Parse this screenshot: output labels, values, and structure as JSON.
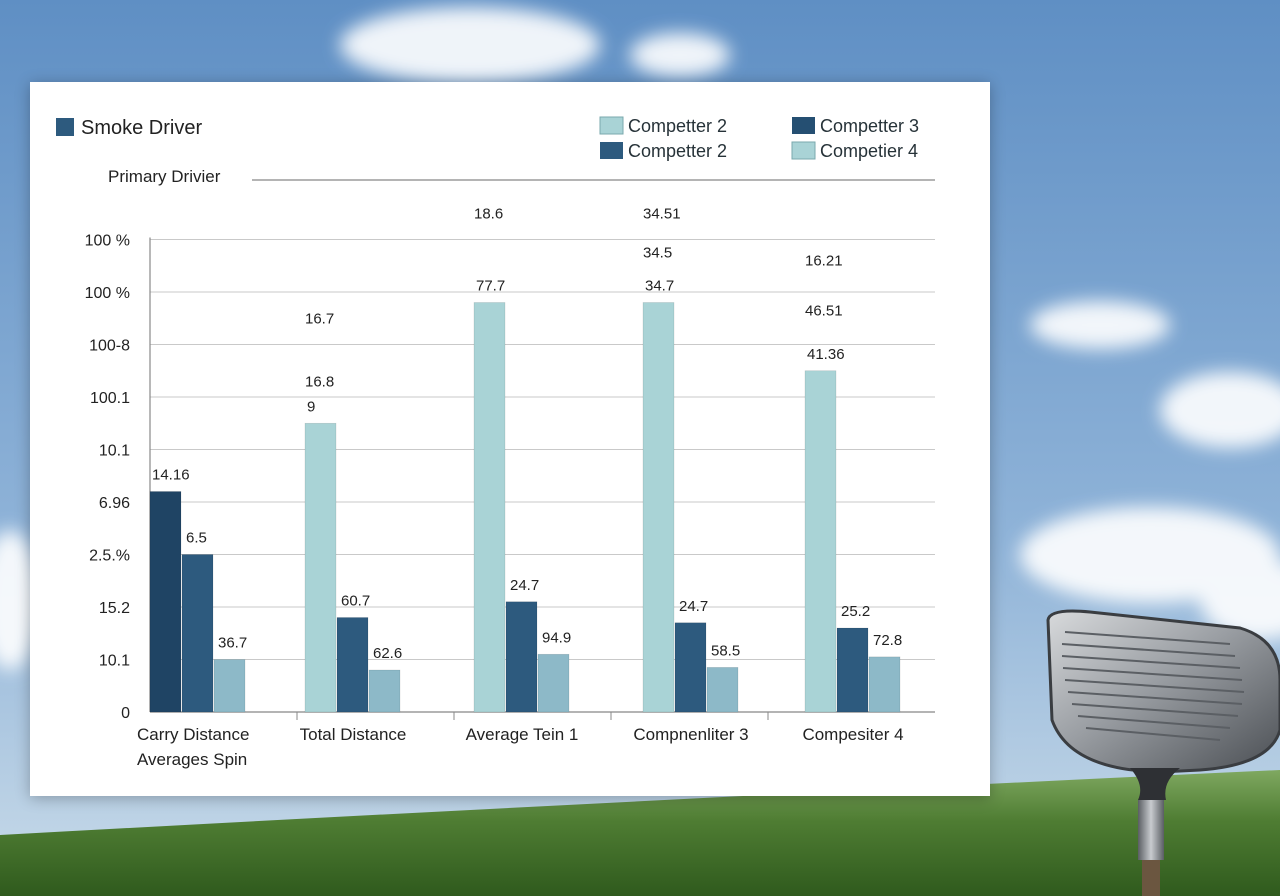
{
  "colors": {
    "dark": "#1f4464",
    "mid": "#2d5a7e",
    "light": "#a9d3d6",
    "pale": "#8db9c8"
  },
  "legend": {
    "title": "Smoke Driver",
    "items": [
      {
        "label": "Competter 2",
        "color": "#a9d3d6"
      },
      {
        "label": "Competter 3",
        "color": "#254f72"
      },
      {
        "label": "Competter 2",
        "color": "#2d5a7e"
      },
      {
        "label": "Competier 4",
        "color": "#a9d3d6"
      }
    ]
  },
  "subtitle": "Primary Drivier",
  "chart_data": {
    "type": "bar",
    "title": "Smoke Driver",
    "subtitle": "Primary Drivier",
    "y_tick_labels": [
      "0",
      "10.1",
      "15.2",
      "2.5.%",
      "6.96",
      "10.1",
      "100.1",
      "100-8",
      "100 %",
      "100 %"
    ],
    "ylim": [
      0,
      9
    ],
    "grid": true,
    "legend_position": "top-right",
    "category_labels": [
      "Carry Distance",
      "Total Distance",
      "Average Tein 1",
      "Compnenliter 3",
      "Compesiter 4"
    ],
    "category_label_extra": "Averages Spin",
    "groups": [
      {
        "bars": [
          {
            "level": 4.2,
            "color": "#1f4464",
            "label": "14.16"
          },
          {
            "level": 3.0,
            "color": "#2d5a7e",
            "label": "6.5"
          },
          {
            "level": 1.0,
            "color": "#8db9c8",
            "label": "36.7"
          }
        ]
      },
      {
        "bars": [
          {
            "level": 5.5,
            "color": "#a9d3d6",
            "label": "9"
          },
          {
            "level": 1.8,
            "color": "#2d5a7e",
            "label": "60.7"
          },
          {
            "level": 0.8,
            "color": "#8db9c8",
            "label": "62.6"
          }
        ]
      },
      {
        "bars": [
          {
            "level": 7.8,
            "color": "#a9d3d6",
            "label": "77.7"
          },
          {
            "level": 2.1,
            "color": "#2d5a7e",
            "label": "24.7"
          },
          {
            "level": 1.1,
            "color": "#8db9c8",
            "label": "94.9"
          }
        ]
      },
      {
        "bars": [
          {
            "level": 7.8,
            "color": "#a9d3d6",
            "label": "34.7"
          },
          {
            "level": 1.7,
            "color": "#2d5a7e",
            "label": "24.7"
          },
          {
            "level": 0.85,
            "color": "#8db9c8",
            "label": "58.5"
          }
        ]
      },
      {
        "bars": [
          {
            "level": 6.5,
            "color": "#a9d3d6",
            "label": "41.36"
          },
          {
            "level": 1.6,
            "color": "#2d5a7e",
            "label": "25.2"
          },
          {
            "level": 1.05,
            "color": "#8db9c8",
            "label": "72.8"
          }
        ]
      }
    ],
    "annotations": [
      {
        "text": "18.6",
        "group": 2,
        "level": 9.5
      },
      {
        "text": "34.51",
        "group": 3,
        "level": 9.5
      },
      {
        "text": "34.5",
        "group": 3,
        "level": 8.75
      },
      {
        "text": "16.21",
        "group": 4,
        "level": 8.6
      },
      {
        "text": "46.51",
        "group": 4,
        "level": 7.65
      },
      {
        "text": "16.7",
        "group": 1,
        "level": 7.5
      },
      {
        "text": "16.8",
        "group": 1,
        "level": 6.3
      }
    ]
  }
}
